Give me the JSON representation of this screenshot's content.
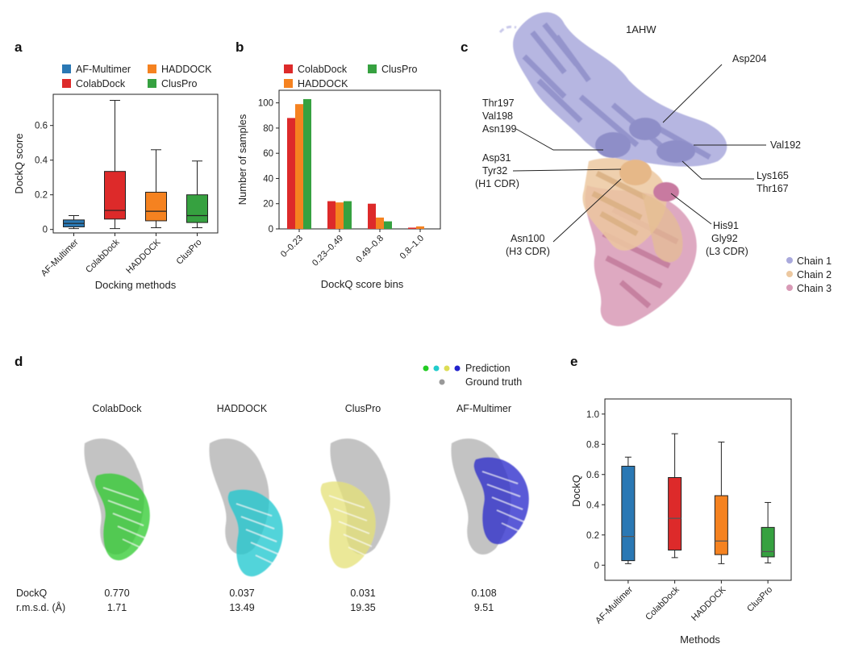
{
  "panels": {
    "a": "a",
    "b": "b",
    "c": "c",
    "d": "d",
    "e": "e"
  },
  "chart_data": [
    {
      "type": "box",
      "panel": "a",
      "xlabel": "Docking methods",
      "ylabel": "DockQ score",
      "ylim": [
        -0.02,
        0.78
      ],
      "yticks": [
        "0",
        "0.2",
        "0.4",
        "0.6"
      ],
      "ytick_values": [
        0,
        0.2,
        0.4,
        0.6
      ],
      "legend": [
        {
          "name": "AF-Multimer",
          "color": "#2a78b4"
        },
        {
          "name": "HADDOCK",
          "color": "#f58220"
        },
        {
          "name": "ColabDock",
          "color": "#dd2a2a"
        },
        {
          "name": "ClusPro",
          "color": "#36a140"
        }
      ],
      "categories": [
        "AF-Multimer",
        "ColabDock",
        "HADDOCK",
        "ClusPro"
      ],
      "boxes": [
        {
          "name": "AF-Multimer",
          "color": "#2a78b4",
          "min": 0.005,
          "q1": 0.015,
          "median": 0.035,
          "q3": 0.055,
          "max": 0.08
        },
        {
          "name": "ColabDock",
          "color": "#dd2a2a",
          "min": 0.005,
          "q1": 0.06,
          "median": 0.11,
          "q3": 0.335,
          "max": 0.745
        },
        {
          "name": "HADDOCK",
          "color": "#f58220",
          "min": 0.01,
          "q1": 0.05,
          "median": 0.105,
          "q3": 0.215,
          "max": 0.46
        },
        {
          "name": "ClusPro",
          "color": "#36a140",
          "min": 0.01,
          "q1": 0.04,
          "median": 0.08,
          "q3": 0.2,
          "max": 0.395
        }
      ]
    },
    {
      "type": "bar",
      "panel": "b",
      "xlabel": "DockQ score bins",
      "ylabel": "Number of samples",
      "ylim": [
        0,
        110
      ],
      "yticks": [
        "0",
        "20",
        "40",
        "60",
        "80",
        "100"
      ],
      "ytick_values": [
        0,
        20,
        40,
        60,
        80,
        100
      ],
      "categories": [
        "0–0.23",
        "0.23–0.49",
        "0.49–0.8",
        "0.8–1.0"
      ],
      "series": [
        {
          "name": "ColabDock",
          "color": "#dd2a2a",
          "values": [
            88,
            22,
            20,
            1
          ]
        },
        {
          "name": "HADDOCK",
          "color": "#f58220",
          "values": [
            99,
            21,
            9,
            2
          ]
        },
        {
          "name": "ClusPro",
          "color": "#36a140",
          "values": [
            103,
            22,
            6,
            0
          ]
        }
      ]
    },
    {
      "type": "box",
      "panel": "e",
      "xlabel": "Methods",
      "ylabel": "DockQ",
      "ylim": [
        -0.1,
        1.1
      ],
      "yticks": [
        "0",
        "0.2",
        "0.4",
        "0.6",
        "0.8",
        "1.0"
      ],
      "ytick_values": [
        0,
        0.2,
        0.4,
        0.6,
        0.8,
        1.0
      ],
      "categories": [
        "AF-Multimer",
        "ColabDock",
        "HADDOCK",
        "ClusPro"
      ],
      "boxes": [
        {
          "name": "AF-Multimer",
          "color": "#2a78b4",
          "min": 0.01,
          "q1": 0.03,
          "median": 0.19,
          "q3": 0.655,
          "max": 0.715
        },
        {
          "name": "ColabDock",
          "color": "#dd2a2a",
          "min": 0.05,
          "q1": 0.1,
          "median": 0.31,
          "q3": 0.58,
          "max": 0.87
        },
        {
          "name": "HADDOCK",
          "color": "#f58220",
          "min": 0.01,
          "q1": 0.07,
          "median": 0.16,
          "q3": 0.46,
          "max": 0.815
        },
        {
          "name": "ClusPro",
          "color": "#36a140",
          "min": 0.015,
          "q1": 0.055,
          "median": 0.09,
          "q3": 0.25,
          "max": 0.415
        }
      ]
    }
  ],
  "structure_c": {
    "pdb_id": "1AHW",
    "labels": {
      "asp204": "Asp204",
      "thr197": "Thr197",
      "val198": "Val198",
      "asn199": "Asn199",
      "val192": "Val192",
      "asp31": "Asp31",
      "tyr32": "Tyr32",
      "h1cdr": "(H1 CDR)",
      "lys165": "Lys165",
      "thr167": "Thr167",
      "his91": "His91",
      "gly92": "Gly92",
      "l3cdr": "(L3 CDR)",
      "asn100": "Asn100",
      "h3cdr": "(H3 CDR)"
    },
    "legend": [
      {
        "name": "Chain 1",
        "color": "#a9a9dc"
      },
      {
        "name": "Chain 2",
        "color": "#ecc8a0"
      },
      {
        "name": "Chain 3",
        "color": "#d89ab6"
      }
    ]
  },
  "panel_d": {
    "legend": {
      "prediction": "Prediction",
      "ground_truth": "Ground truth"
    },
    "prediction_dot_colors": [
      "#22cc22",
      "#22cccc",
      "#dddd55",
      "#2222cc"
    ],
    "ground_truth_color": "#999999",
    "row_labels": {
      "dockq": "DockQ",
      "rmsd": "r.m.s.d. (Å)"
    },
    "models": [
      {
        "name": "ColabDock",
        "color": "#33cc33",
        "dockq": "0.770",
        "rmsd": "1.71"
      },
      {
        "name": "HADDOCK",
        "color": "#22c8d0",
        "dockq": "0.037",
        "rmsd": "13.49"
      },
      {
        "name": "ClusPro",
        "color": "#e6e27a",
        "dockq": "0.031",
        "rmsd": "19.35"
      },
      {
        "name": "AF-Multimer",
        "color": "#2d2dcc",
        "dockq": "0.108",
        "rmsd": "9.51"
      }
    ]
  }
}
